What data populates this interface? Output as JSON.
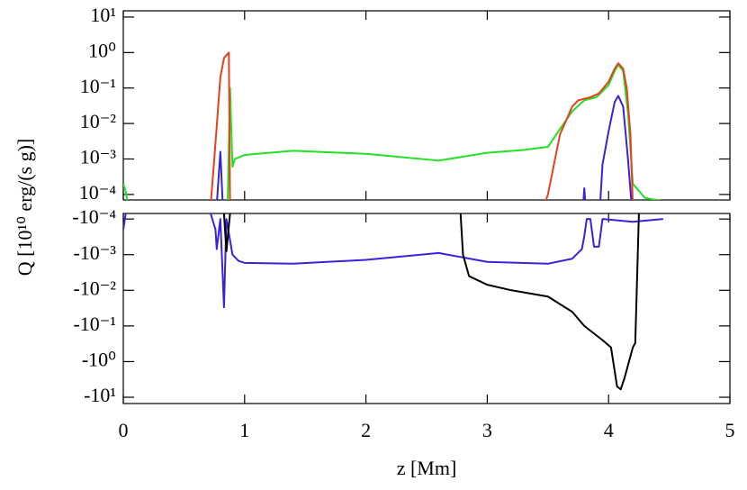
{
  "chart_data": [
    {
      "type": "line",
      "log": true,
      "y_label": "Q [10¹⁰ erg/(s g)]",
      "xlim": [
        0,
        5
      ],
      "ylim": [
        7e-05,
        15
      ],
      "yticks": [
        {
          "value": 0.0001,
          "label": "10⁻⁴"
        },
        {
          "value": 0.001,
          "label": "10⁻³"
        },
        {
          "value": 0.01,
          "label": "10⁻²"
        },
        {
          "value": 0.1,
          "label": "10⁻¹"
        },
        {
          "value": 1,
          "label": "10⁰"
        },
        {
          "value": 10,
          "label": "10¹"
        }
      ],
      "series": [
        {
          "color": "#22e022",
          "x": [
            0,
            0.02,
            0.04,
            null,
            0.86,
            0.88,
            0.9,
            0.92,
            1,
            1.4,
            2,
            2.6,
            3,
            3.3,
            3.5,
            3.6,
            3.7,
            3.8,
            3.9,
            4.0,
            4.05,
            4.08,
            4.12,
            4.16,
            4.2,
            4.3,
            4.5
          ],
          "values": [
            0.0002,
            0.00012,
            5e-05,
            null,
            5e-05,
            0.1,
            0.0006,
            0.001,
            0.0013,
            0.0017,
            0.0014,
            0.0009,
            0.0015,
            0.0018,
            0.0022,
            0.007,
            0.022,
            0.045,
            0.055,
            0.12,
            0.3,
            0.45,
            0.3,
            0.02,
            0.0002,
            8e-05,
            6e-05
          ]
        },
        {
          "color": "#e8401c",
          "x": [
            0.72,
            0.75,
            0.8,
            0.83,
            0.87,
            0.88,
            null,
            3.47,
            3.5,
            3.6,
            3.65,
            3.7,
            3.75,
            3.85,
            3.92,
            4.0,
            4.05,
            4.08,
            4.12,
            4.15,
            4.18,
            4.2
          ],
          "values": [
            5e-05,
            0.001,
            0.2,
            0.7,
            1.0,
            5e-05,
            null,
            5e-05,
            0.0001,
            0.005,
            0.012,
            0.03,
            0.045,
            0.055,
            0.07,
            0.15,
            0.35,
            0.5,
            0.35,
            0.1,
            0.005,
            5e-05
          ]
        },
        {
          "color": "#3a22d8",
          "x": [
            0.77,
            0.8,
            0.82,
            null,
            3.79,
            3.8,
            3.81,
            null,
            3.93,
            3.95,
            4.0,
            4.05,
            4.08,
            4.12,
            4.16,
            4.19
          ],
          "values": [
            5e-05,
            0.0016,
            5e-05,
            null,
            5e-05,
            0.00015,
            5e-05,
            null,
            5e-05,
            0.0007,
            0.006,
            0.04,
            0.06,
            0.03,
            0.001,
            5e-05
          ]
        }
      ]
    },
    {
      "type": "line",
      "log": true,
      "x_label": "z [Mm]",
      "xlim": [
        0,
        5
      ],
      "xticks": [
        0,
        1,
        2,
        3,
        4,
        5
      ],
      "ylim": [
        -15,
        -7e-05
      ],
      "yticks": [
        {
          "value": -0.0001,
          "label": "-10⁻⁴"
        },
        {
          "value": -0.001,
          "label": "-10⁻³"
        },
        {
          "value": -0.01,
          "label": "-10⁻²"
        },
        {
          "value": -0.1,
          "label": "-10⁻¹"
        },
        {
          "value": -1,
          "label": "-10⁰"
        },
        {
          "value": -10,
          "label": "-10¹"
        }
      ],
      "series": [
        {
          "color": "#3a22d8",
          "x": [
            0,
            0.02,
            null,
            0.72,
            0.76,
            0.77,
            0.8,
            0.83,
            0.85,
            0.9,
            0.95,
            1,
            1.4,
            2,
            2.6,
            3,
            3.5,
            3.7,
            3.78,
            3.8,
            3.82,
            3.85,
            3.88,
            3.92,
            3.95,
            4.2,
            4.45
          ],
          "values": [
            -0.0002,
            -7e-05,
            null,
            -7e-05,
            -0.0002,
            -0.0007,
            -0.0001,
            -0.03,
            -0.0001,
            -0.001,
            -0.0015,
            -0.0017,
            -0.0018,
            -0.0014,
            -0.0009,
            -0.0016,
            -0.0018,
            -0.0013,
            -0.0007,
            -0.0003,
            -0.0001,
            -0.0001,
            -0.0006,
            -0.0006,
            -0.0001,
            -0.00012,
            -0.0001
          ]
        },
        {
          "color": "#000000",
          "x": [
            0.83,
            0.85,
            0.88,
            null,
            2.78,
            2.8,
            2.85,
            3,
            3.2,
            3.5,
            3.7,
            3.8,
            3.95,
            4.02,
            4.07,
            4.1,
            4.13,
            4.2,
            4.22,
            4.25
          ],
          "values": [
            -7e-05,
            -0.0008,
            -7e-05,
            null,
            -7e-05,
            -0.001,
            -0.004,
            -0.007,
            -0.01,
            -0.015,
            -0.04,
            -0.1,
            -0.25,
            -0.4,
            -5,
            -6,
            -3,
            -0.4,
            -0.3,
            -7e-05
          ]
        }
      ]
    }
  ]
}
